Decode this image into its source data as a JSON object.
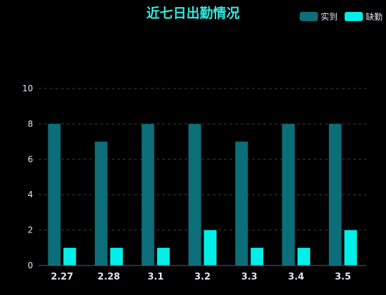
{
  "chart_data": {
    "type": "bar",
    "title": "近七日出勤情况",
    "categories": [
      "2.27",
      "2.28",
      "3.1",
      "3.2",
      "3.3",
      "3.4",
      "3.5"
    ],
    "series": [
      {
        "name": "实到",
        "values": [
          8,
          7,
          8,
          8,
          7,
          8,
          8
        ],
        "color": "#0b6e78"
      },
      {
        "name": "缺勤",
        "values": [
          1,
          1,
          1,
          2,
          1,
          1,
          2
        ],
        "color": "#00f0e8"
      }
    ],
    "ylim": [
      0,
      10
    ],
    "yticks": [
      0,
      2,
      4,
      6,
      8,
      10
    ],
    "grid": true,
    "legend": "top-right",
    "colors": {
      "background": "#000000",
      "title": "#33e8e0",
      "axis_text": "#dfe4f0",
      "grid": "#3a3d45",
      "axis_line": "#4a5a9a"
    }
  }
}
